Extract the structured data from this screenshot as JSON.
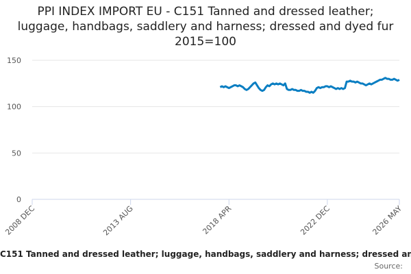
{
  "chart_data": {
    "type": "line",
    "title": "PPI INDEX IMPORT EU - C151 Tanned and dressed leather; luggage, handbags, saddlery and harness; dressed and dyed fur 2015=100",
    "x": [
      "2017 NOV",
      "2017 DEC",
      "2018 JAN",
      "2018 FEB",
      "2018 MAR",
      "2018 APR",
      "2018 MAY",
      "2018 JUN",
      "2018 JUL",
      "2018 AUG",
      "2018 SEP",
      "2018 OCT",
      "2018 NOV",
      "2018 DEC",
      "2019 JAN",
      "2019 FEB",
      "2019 MAR",
      "2019 APR",
      "2019 MAY",
      "2019 JUN",
      "2019 JUL",
      "2019 AUG",
      "2019 SEP",
      "2019 OCT",
      "2019 NOV",
      "2019 DEC",
      "2020 JAN",
      "2020 FEB",
      "2020 MAR",
      "2020 APR",
      "2020 MAY",
      "2020 JUN",
      "2020 JUL",
      "2020 AUG",
      "2020 SEP",
      "2020 OCT",
      "2020 NOV",
      "2020 DEC",
      "2021 JAN",
      "2021 FEB",
      "2021 MAR",
      "2021 APR",
      "2021 MAY",
      "2021 JUN",
      "2021 JUL",
      "2021 AUG",
      "2021 SEP",
      "2021 OCT",
      "2021 NOV",
      "2021 DEC",
      "2022 JAN",
      "2022 FEB",
      "2022 MAR",
      "2022 APR",
      "2022 MAY",
      "2022 JUN",
      "2022 JUL",
      "2022 AUG",
      "2022 SEP",
      "2022 OCT",
      "2022 NOV",
      "2022 DEC",
      "2023 JAN",
      "2023 FEB",
      "2023 MAR",
      "2023 APR",
      "2023 MAY",
      "2023 JUN",
      "2023 JUL",
      "2023 AUG",
      "2023 SEP",
      "2023 OCT",
      "2023 NOV",
      "2023 DEC",
      "2024 JAN",
      "2024 FEB",
      "2024 MAR",
      "2024 APR",
      "2024 MAY",
      "2024 JUN",
      "2024 JUL",
      "2024 AUG",
      "2024 SEP",
      "2024 OCT",
      "2024 NOV",
      "2024 DEC",
      "2025 JAN",
      "2025 FEB",
      "2025 MAR",
      "2025 APR",
      "2025 MAY",
      "2025 JUN",
      "2025 JUL",
      "2025 AUG",
      "2025 SEP",
      "2025 OCT",
      "2025 NOV",
      "2025 DEC",
      "2026 JAN",
      "2026 FEB",
      "2026 MAR",
      "2026 APR",
      "2026 MAY"
    ],
    "series": [
      {
        "name": "C151 Tanned and dressed leather; luggage, handbags, saddlery and harness; dressed and dyed fur",
        "color": "#0a7ec2",
        "values": [
          121,
          122,
          121,
          122,
          121,
          120,
          121,
          122,
          123,
          123,
          122,
          123,
          122,
          121,
          119,
          118,
          119,
          121,
          123,
          125,
          126,
          123,
          120,
          118,
          117,
          118,
          121,
          123,
          122,
          124,
          125,
          124,
          125,
          124,
          125,
          124,
          123,
          125,
          119,
          118,
          118,
          119,
          118,
          118,
          117,
          117,
          118,
          117,
          117,
          116,
          116,
          115,
          116,
          115,
          117,
          120,
          121,
          120,
          121,
          121,
          122,
          122,
          121,
          122,
          121,
          120,
          119,
          120,
          119,
          120,
          119,
          120,
          127,
          127,
          128,
          127,
          127,
          126,
          127,
          126,
          125,
          125,
          124,
          123,
          124,
          125,
          124,
          125,
          126,
          127,
          128,
          129,
          129,
          130,
          131,
          130,
          130,
          129,
          129,
          130,
          129,
          128,
          129
        ]
      }
    ],
    "xlim": [
      "2008 DEC",
      "2026 MAY"
    ],
    "xticks": [
      "2008 DEC",
      "2013 AUG",
      "2018 APR",
      "2022 DEC",
      "2026 MAY"
    ],
    "ylim": [
      0,
      150
    ],
    "yticks": [
      0,
      50,
      100,
      150
    ],
    "grid": true,
    "source_label": "Source:"
  }
}
